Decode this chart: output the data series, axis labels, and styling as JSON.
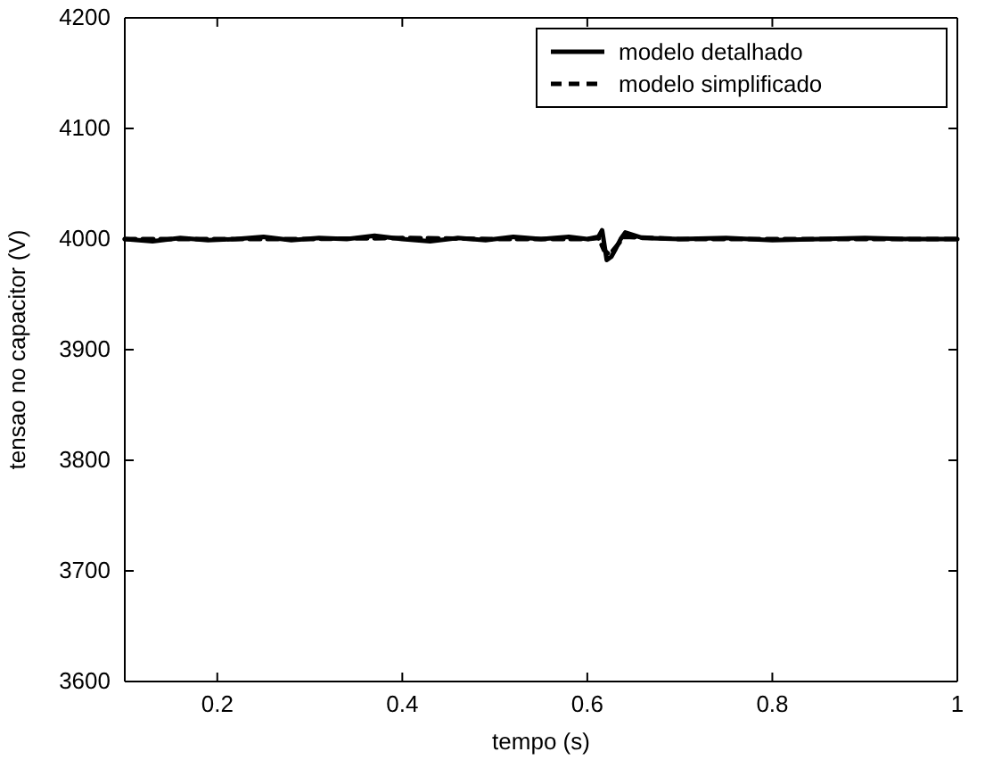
{
  "chart_data": {
    "type": "line",
    "xlabel": "tempo (s)",
    "ylabel": "tensao no capacitor (V)",
    "xlim": [
      0.1,
      1
    ],
    "ylim": [
      3600,
      4200
    ],
    "xticks": [
      0.2,
      0.4,
      0.6,
      0.8,
      1
    ],
    "yticks": [
      3600,
      3700,
      3800,
      3900,
      4000,
      4100,
      4200
    ],
    "grid": false,
    "legend": "top right",
    "marker": "none",
    "series": [
      {
        "name": "modelo detalhado",
        "color": "#000000",
        "line_style": "solid",
        "x": [
          0.1,
          0.13,
          0.16,
          0.19,
          0.22,
          0.25,
          0.28,
          0.31,
          0.34,
          0.37,
          0.4,
          0.43,
          0.46,
          0.49,
          0.52,
          0.55,
          0.58,
          0.6,
          0.612,
          0.616,
          0.621,
          0.626,
          0.63,
          0.636,
          0.641,
          0.66,
          0.7,
          0.75,
          0.8,
          0.85,
          0.9,
          0.95,
          1
        ],
        "values": [
          4000,
          3998,
          4001,
          3999,
          4000,
          4002,
          3999,
          4001,
          4000,
          4003,
          4000,
          3998,
          4001,
          3999,
          4002,
          4000,
          4002,
          4000,
          4002,
          4008,
          3981,
          3984,
          3990,
          4000,
          4006,
          4001,
          4000,
          4001,
          3999,
          4000,
          4001,
          4000,
          4000
        ]
      },
      {
        "name": "modelo simplificado",
        "color": "#000000",
        "line_style": "dashed",
        "x": [
          0.1,
          0.2,
          0.3,
          0.4,
          0.5,
          0.6,
          0.612,
          0.618,
          0.624,
          0.632,
          0.64,
          0.7,
          0.8,
          0.9,
          1
        ],
        "values": [
          4000,
          4000,
          4000,
          4001,
          4000,
          4000,
          4001,
          3990,
          3986,
          3994,
          4002,
          4000,
          4000,
          4000,
          4000
        ]
      }
    ]
  }
}
